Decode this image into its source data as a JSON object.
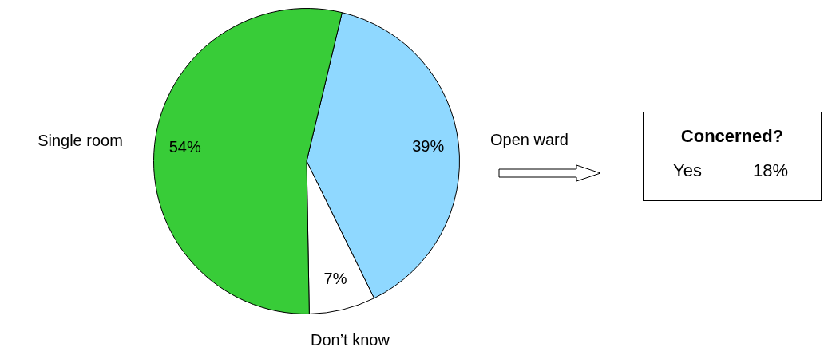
{
  "chart_data": {
    "type": "pie",
    "categories": [
      "Open ward",
      "Don’t know",
      "Single room"
    ],
    "values": [
      39,
      7,
      54
    ],
    "colors": [
      "#8fd8ff",
      "#ffffff",
      "#38cc38"
    ],
    "value_labels": [
      "39%",
      "7%",
      "54%"
    ],
    "legend": false,
    "annotations": [
      "Concerned?",
      "Yes",
      "18%"
    ]
  }
}
